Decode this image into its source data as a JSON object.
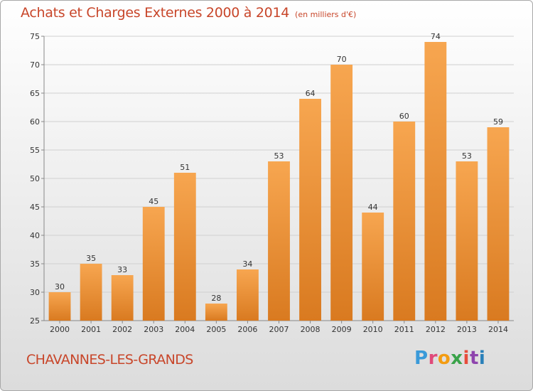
{
  "header": {
    "title": "Achats et Charges Externes 2000 à 2014",
    "subtitle": "(en milliers d'€)"
  },
  "footer": {
    "commune": "CHAVANNES-LES-GRANDS",
    "logo": [
      "P",
      "r",
      "o",
      "x",
      "i",
      "t",
      "i"
    ]
  },
  "colors": {
    "bar_light": "#f7a650",
    "bar_dark": "#d97a20",
    "title": "#c8462a",
    "grid": "#d0d0d0"
  },
  "chart_data": {
    "type": "bar",
    "title": "Achats et Charges Externes 2000 à 2014",
    "categories": [
      "2000",
      "2001",
      "2002",
      "2003",
      "2004",
      "2005",
      "2006",
      "2007",
      "2008",
      "2009",
      "2010",
      "2011",
      "2012",
      "2013",
      "2014"
    ],
    "values": [
      30,
      35,
      33,
      45,
      51,
      28,
      34,
      53,
      64,
      70,
      44,
      60,
      74,
      53,
      59
    ],
    "ylim": [
      25,
      75
    ],
    "yticks": [
      25,
      30,
      35,
      40,
      45,
      50,
      55,
      60,
      65,
      70,
      75
    ],
    "grid": true,
    "xlabel": "",
    "ylabel": ""
  }
}
